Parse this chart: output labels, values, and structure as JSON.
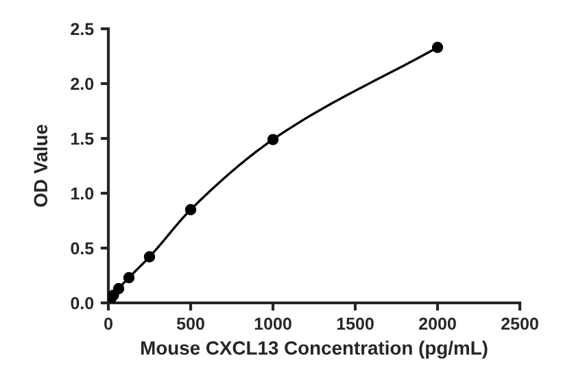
{
  "chart_data": {
    "type": "line",
    "xlabel": "Mouse CXCL13 Concentration (pg/mL)",
    "ylabel": "OD Value",
    "series": [
      {
        "color": "#000000",
        "x": [
          0,
          15.6,
          31.25,
          62.5,
          125,
          250,
          500,
          1000,
          2000
        ],
        "values": [
          0.02,
          0.04,
          0.07,
          0.13,
          0.23,
          0.42,
          0.85,
          1.49,
          2.33
        ]
      }
    ],
    "xlim": [
      0,
      2500
    ],
    "xticks": [
      0,
      500,
      1000,
      1500,
      2000,
      2500
    ],
    "ylim": [
      0,
      2.5
    ],
    "yticks": [
      {
        "value": 0,
        "label": "0.0"
      },
      0.5,
      {
        "value": 1,
        "label": "1.0"
      },
      1.5,
      {
        "value": 2,
        "label": "2.0"
      },
      2.5
    ],
    "marker": "circle",
    "line_style": "solid",
    "grid": false,
    "legend": false
  }
}
